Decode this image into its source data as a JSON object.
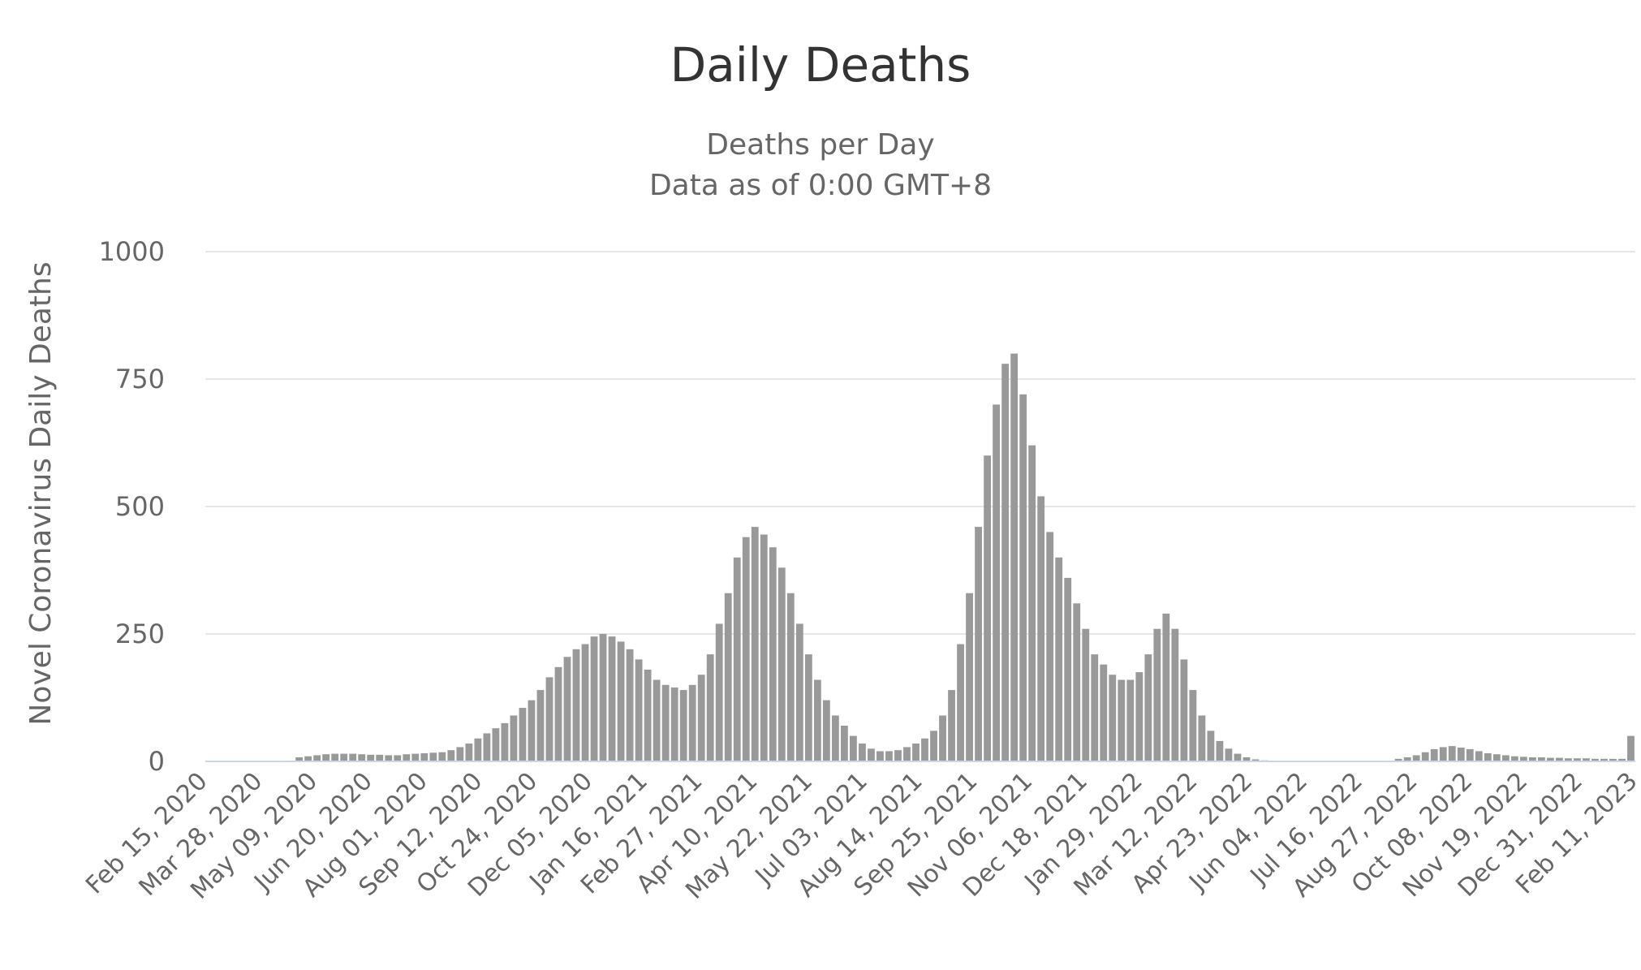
{
  "chart_data": {
    "type": "bar",
    "title": "Daily Deaths",
    "subtitle": [
      "Deaths per Day",
      "Data as of 0:00 GMT+8"
    ],
    "xlabel": "",
    "ylabel": "Novel Coronavirus Daily Deaths",
    "ylim": [
      0,
      1000
    ],
    "y_ticks": [
      0,
      250,
      500,
      750,
      1000
    ],
    "x_tick_labels": [
      "Feb 15, 2020",
      "Mar 28, 2020",
      "May 09, 2020",
      "Jun 20, 2020",
      "Aug 01, 2020",
      "Sep 12, 2020",
      "Oct 24, 2020",
      "Dec 05, 2020",
      "Jan 16, 2021",
      "Feb 27, 2021",
      "Apr 10, 2021",
      "May 22, 2021",
      "Jul 03, 2021",
      "Aug 14, 2021",
      "Sep 25, 2021",
      "Nov 06, 2021",
      "Dec 18, 2021",
      "Jan 29, 2022",
      "Mar 12, 2022",
      "Apr 23, 2022",
      "Jun 04, 2022",
      "Jul 16, 2022",
      "Aug 27, 2022",
      "Oct 08, 2022",
      "Nov 19, 2022",
      "Dec 31, 2022",
      "Feb 11, 2023"
    ],
    "grid": true,
    "legend": "none",
    "color": "#999999",
    "series": [
      {
        "interval": "weekly",
        "values": [
          0,
          0,
          0,
          0,
          0,
          0,
          0,
          0,
          0,
          0,
          8,
          10,
          12,
          14,
          15,
          15,
          15,
          14,
          13,
          13,
          12,
          12,
          14,
          15,
          16,
          17,
          18,
          22,
          28,
          35,
          45,
          55,
          65,
          75,
          90,
          105,
          120,
          140,
          165,
          185,
          205,
          220,
          230,
          245,
          250,
          245,
          235,
          220,
          200,
          180,
          160,
          150,
          145,
          140,
          150,
          170,
          210,
          270,
          330,
          400,
          440,
          460,
          445,
          420,
          380,
          330,
          270,
          210,
          160,
          120,
          90,
          70,
          50,
          35,
          25,
          20,
          20,
          22,
          28,
          35,
          45,
          60,
          90,
          140,
          230,
          330,
          460,
          600,
          700,
          780,
          800,
          720,
          620,
          520,
          450,
          400,
          360,
          310,
          260,
          210,
          190,
          170,
          160,
          160,
          175,
          210,
          260,
          290,
          260,
          200,
          140,
          90,
          60,
          40,
          25,
          15,
          8,
          4,
          2,
          0,
          0,
          0,
          0,
          0,
          0,
          0,
          0,
          0,
          0,
          0,
          0,
          0,
          0,
          5,
          8,
          12,
          18,
          24,
          28,
          30,
          27,
          24,
          20,
          16,
          14,
          12,
          10,
          9,
          8,
          8,
          7,
          7,
          6,
          6,
          6,
          5,
          5,
          5,
          5,
          50
        ]
      }
    ]
  }
}
